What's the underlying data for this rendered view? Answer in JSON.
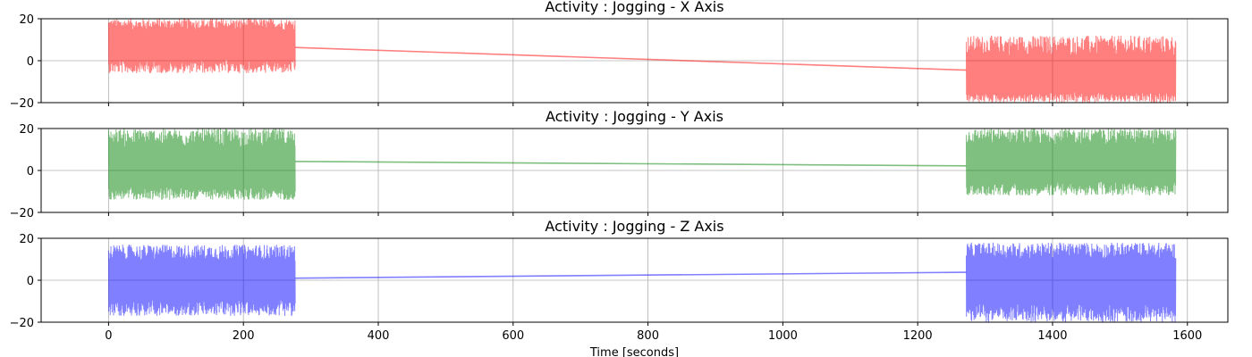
{
  "chart_data": [
    {
      "type": "line",
      "title": "Activity : Jogging - X Axis",
      "xlabel": "",
      "ylabel": "",
      "xlim": [
        -100,
        1660
      ],
      "ylim": [
        -20,
        20
      ],
      "xticks": [
        0,
        200,
        400,
        600,
        800,
        1000,
        1200,
        1400,
        1600
      ],
      "yticks": [
        -20,
        0,
        20
      ],
      "ytick_labels": [
        "−20",
        "0",
        "20"
      ],
      "grid": true,
      "color": "#ff0000",
      "segments": [
        {
          "x_start": 0,
          "x_end": 277,
          "center": 8,
          "amplitude_low": -6,
          "amplitude_high": 20
        },
        {
          "x_start": 1272,
          "x_end": 1583,
          "center": -9,
          "amplitude_low": -20,
          "amplitude_high": 12
        }
      ],
      "connector": {
        "x": [
          277,
          1272
        ],
        "y": [
          6.3,
          -4.5
        ]
      }
    },
    {
      "type": "line",
      "title": "Activity : Jogging - Y Axis",
      "xlabel": "",
      "ylabel": "",
      "xlim": [
        -100,
        1660
      ],
      "ylim": [
        -20,
        20
      ],
      "xticks": [
        0,
        200,
        400,
        600,
        800,
        1000,
        1200,
        1400,
        1600
      ],
      "yticks": [
        -20,
        0,
        20
      ],
      "ytick_labels": [
        "−20",
        "0",
        "20"
      ],
      "grid": true,
      "color": "#008000",
      "segments": [
        {
          "x_start": 0,
          "x_end": 277,
          "center": 0,
          "amplitude_low": -14,
          "amplitude_high": 20
        },
        {
          "x_start": 1272,
          "x_end": 1583,
          "center": 3,
          "amplitude_low": -12,
          "amplitude_high": 20
        }
      ],
      "connector": {
        "x": [
          277,
          1272
        ],
        "y": [
          4.3,
          2.2
        ]
      }
    },
    {
      "type": "line",
      "title": "Activity : Jogging - Z Axis",
      "xlabel": "Time [seconds]",
      "ylabel": "",
      "xlim": [
        -100,
        1660
      ],
      "ylim": [
        -20,
        20
      ],
      "xticks": [
        0,
        200,
        400,
        600,
        800,
        1000,
        1200,
        1400,
        1600
      ],
      "xtick_labels": [
        "0",
        "200",
        "400",
        "600",
        "800",
        "1000",
        "1200",
        "1400",
        "1600"
      ],
      "yticks": [
        -20,
        0,
        20
      ],
      "ytick_labels": [
        "−20",
        "0",
        "20"
      ],
      "grid": true,
      "color": "#0000ff",
      "segments": [
        {
          "x_start": 0,
          "x_end": 277,
          "center": 0,
          "amplitude_low": -17,
          "amplitude_high": 17
        },
        {
          "x_start": 1272,
          "x_end": 1583,
          "center": 0,
          "amplitude_low": -20,
          "amplitude_high": 18
        }
      ],
      "connector": {
        "x": [
          277,
          1272
        ],
        "y": [
          1.0,
          3.8
        ]
      }
    }
  ]
}
